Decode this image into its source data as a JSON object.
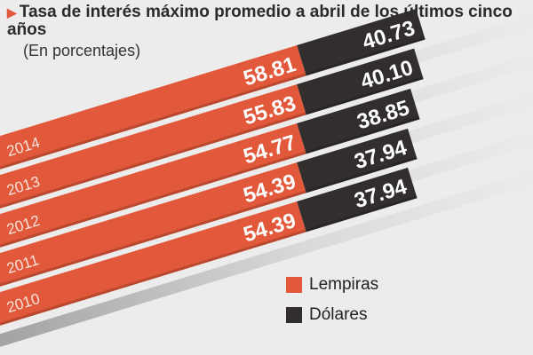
{
  "chart_data": {
    "type": "bar",
    "title": "Tasa de interés máximo promedio a abril de los últimos cinco años",
    "subtitle": "(En porcentajes)",
    "categories": [
      "2014",
      "2013",
      "2012",
      "2011",
      "2010"
    ],
    "series": [
      {
        "name": "Lempiras",
        "color": "#e2583a",
        "values": [
          58.81,
          55.83,
          54.77,
          54.39,
          54.39
        ]
      },
      {
        "name": "Dólares",
        "color": "#332e2e",
        "values": [
          40.73,
          40.1,
          38.85,
          37.94,
          37.94
        ]
      }
    ],
    "orientation": "horizontal-stacked-tilted",
    "legend": "bottom-right",
    "grid": false
  }
}
